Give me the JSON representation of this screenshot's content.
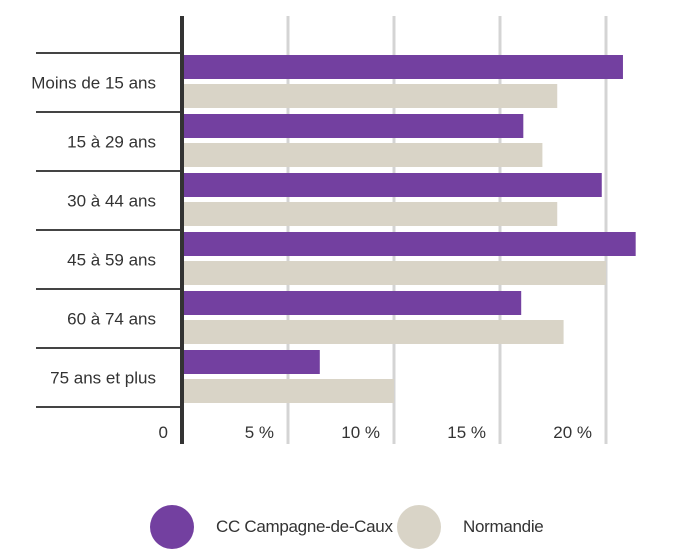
{
  "chart_data": {
    "type": "bar",
    "orientation": "horizontal",
    "categories": [
      "Moins de 15 ans",
      "15 à 29 ans",
      "30 à 44 ans",
      "45 à 59 ans",
      "60 à 74 ans",
      "75 ans et plus"
    ],
    "series": [
      {
        "name": "CC Campagne-de-Caux",
        "color": "#7340a0",
        "values": [
          20.8,
          16.1,
          19.8,
          21.4,
          16.0,
          6.5
        ]
      },
      {
        "name": "Normandie",
        "color": "#d9d4c7",
        "values": [
          17.7,
          17.0,
          17.7,
          20.0,
          18.0,
          10.0
        ]
      }
    ],
    "x_ticks": [
      "0",
      "5 %",
      "10 %",
      "15 %",
      "20 %"
    ],
    "x_tick_values": [
      0,
      5,
      10,
      15,
      20
    ],
    "xlim": [
      0,
      21.5
    ],
    "grid": true,
    "legend_position": "bottom"
  }
}
